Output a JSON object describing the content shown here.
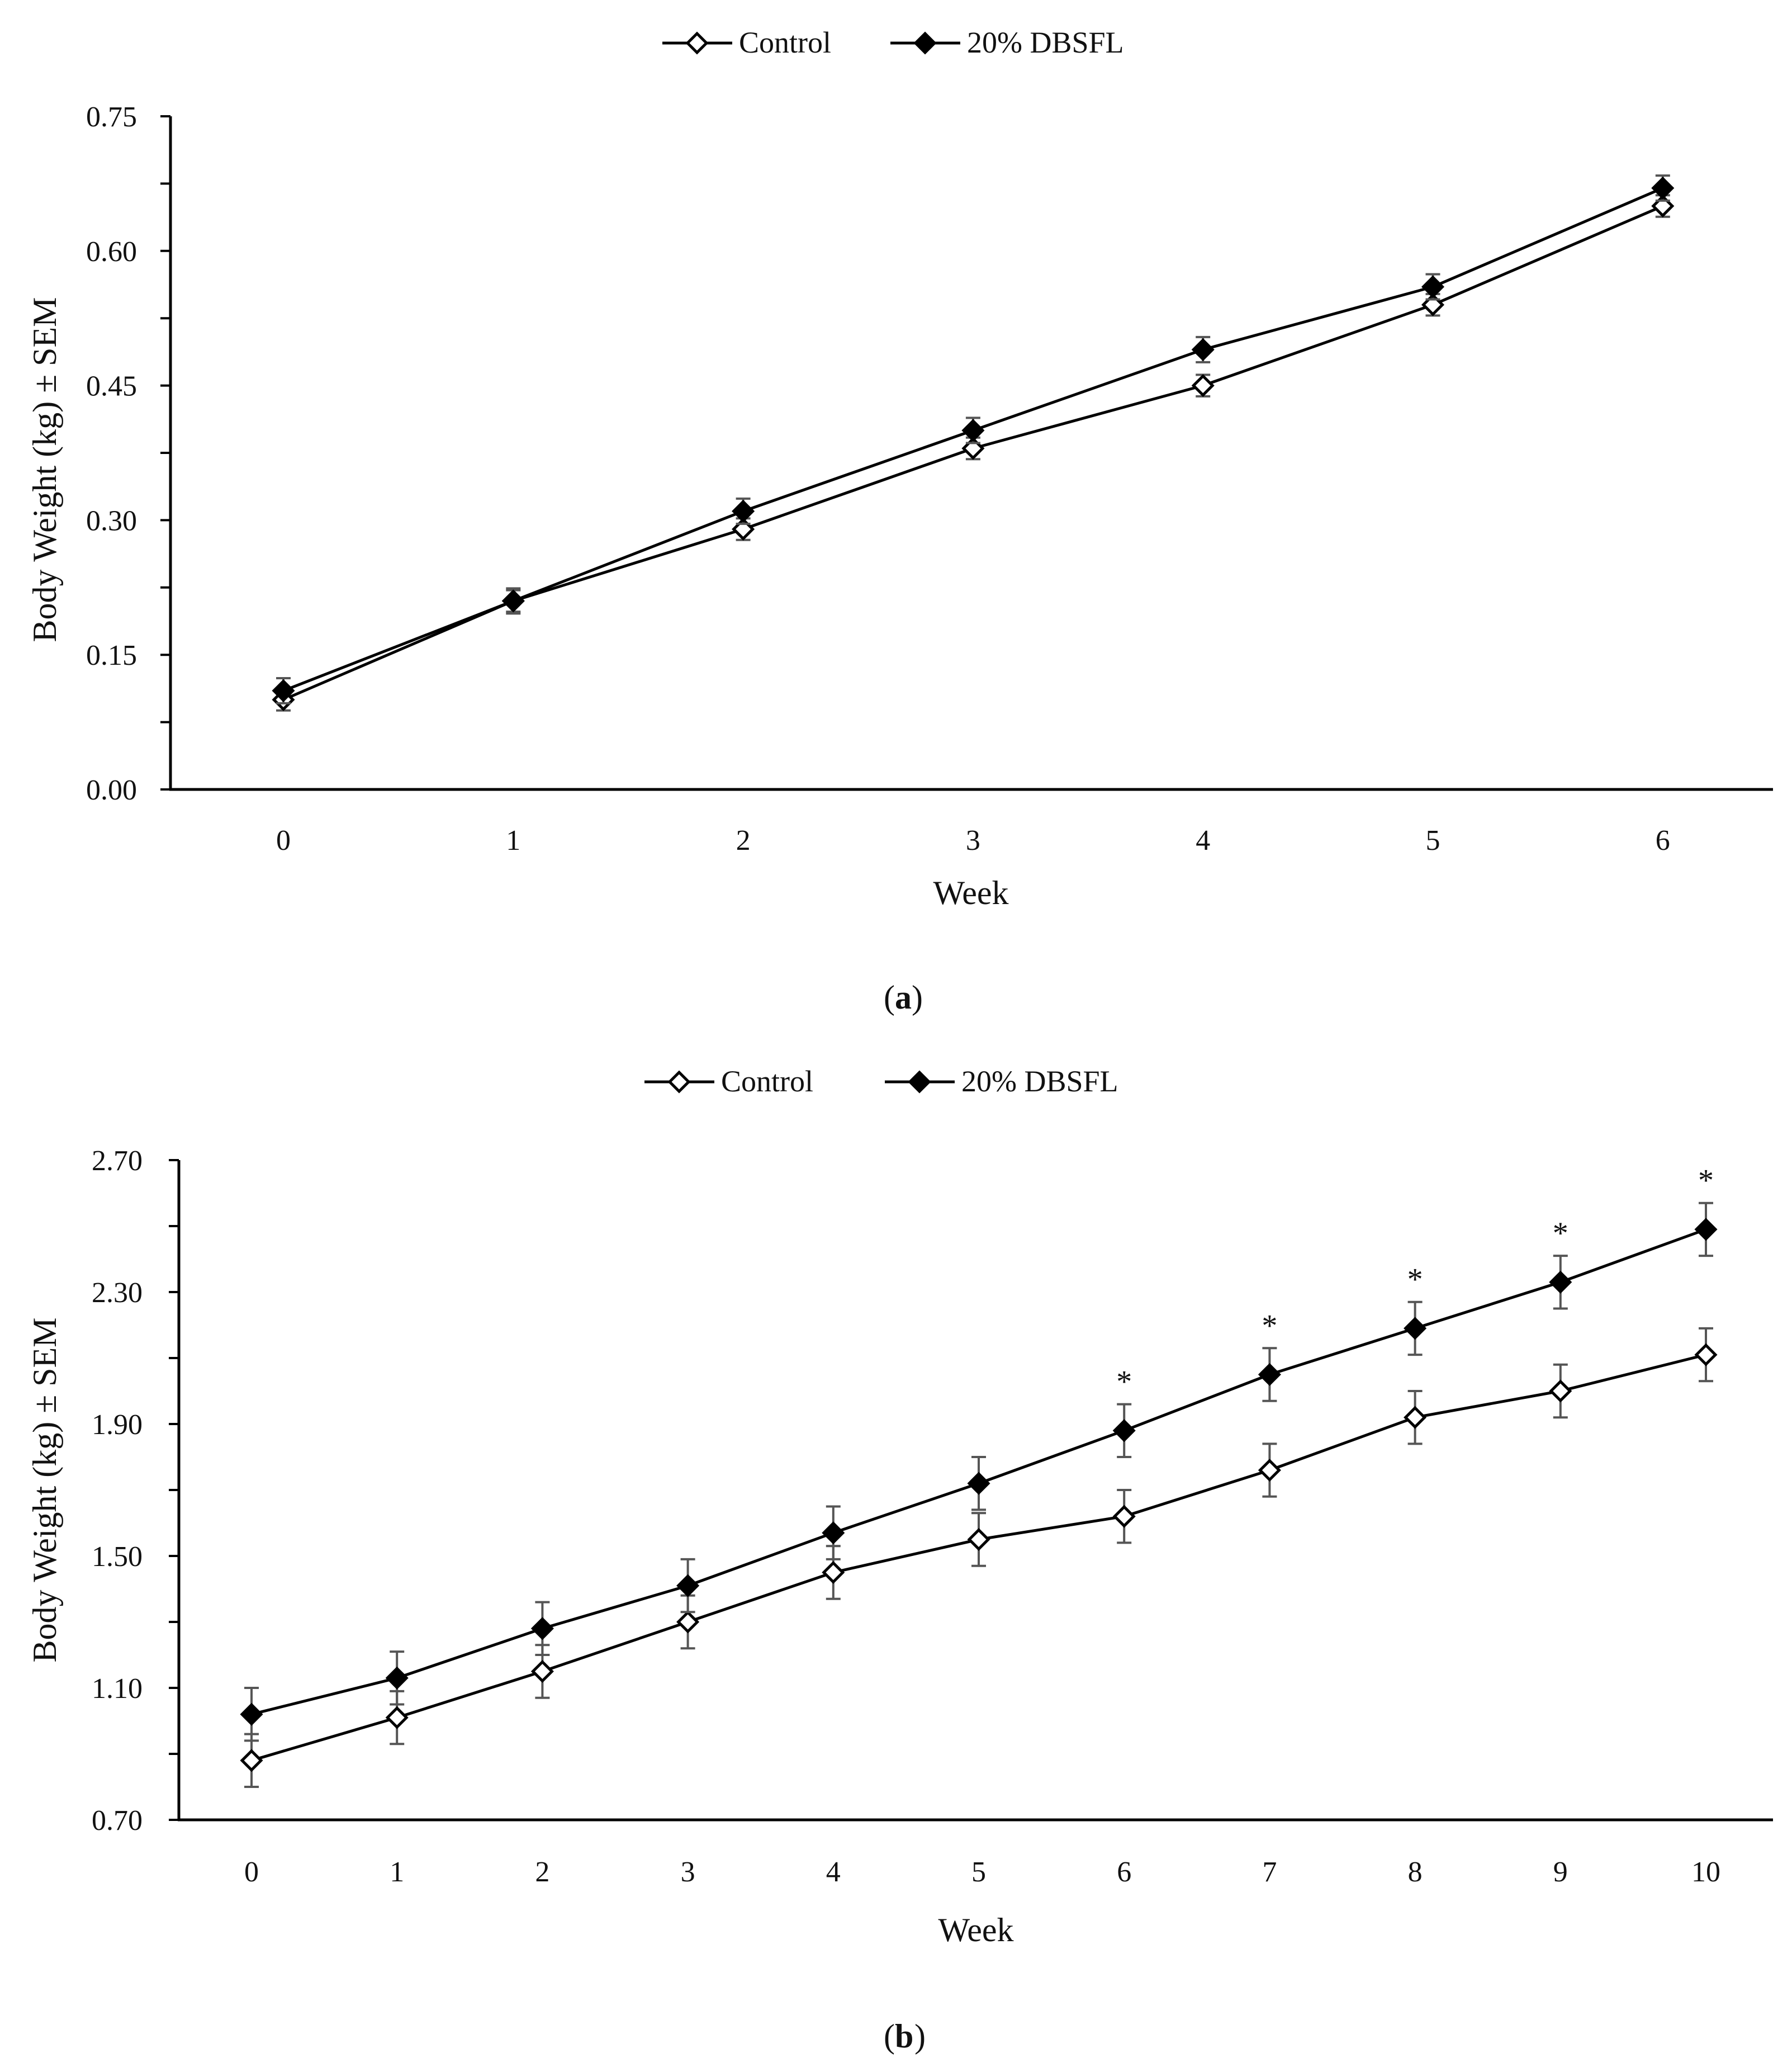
{
  "colors": {
    "line": "#000000",
    "control_fill": "#ffffff",
    "dbsfl_fill": "#000000",
    "error_bar": "#555555"
  },
  "chart_data": [
    {
      "type": "line",
      "panel_label": "a",
      "legend": [
        "Control",
        "20% DBSFL"
      ],
      "xlabel": "Week",
      "ylabel": "Body Weight (kg) ± SEM",
      "x": [
        0,
        1,
        2,
        3,
        4,
        5,
        6
      ],
      "xticks": [
        "0",
        "1",
        "2",
        "3",
        "4",
        "5",
        "6"
      ],
      "yticks": [
        "0.00",
        "0.15",
        "0.30",
        "0.45",
        "0.60",
        "0.75"
      ],
      "ylim": [
        0,
        0.75
      ],
      "yminor_step": 0.075,
      "series": [
        {
          "name": "Control",
          "marker": "open-diamond",
          "values": [
            0.1,
            0.21,
            0.29,
            0.38,
            0.45,
            0.54,
            0.65
          ],
          "sem": [
            0.012,
            0.012,
            0.012,
            0.012,
            0.012,
            0.012,
            0.012
          ]
        },
        {
          "name": "20% DBSFL",
          "marker": "filled-diamond",
          "values": [
            0.11,
            0.21,
            0.31,
            0.4,
            0.49,
            0.56,
            0.67
          ],
          "sem": [
            0.014,
            0.014,
            0.014,
            0.014,
            0.014,
            0.014,
            0.014
          ]
        }
      ],
      "annotations": []
    },
    {
      "type": "line",
      "panel_label": "b",
      "legend": [
        "Control",
        "20% DBSFL"
      ],
      "xlabel": "Week",
      "ylabel": "Body Weight (kg) ± SEM",
      "x": [
        0,
        1,
        2,
        3,
        4,
        5,
        6,
        7,
        8,
        9,
        10
      ],
      "xticks": [
        "0",
        "1",
        "2",
        "3",
        "4",
        "5",
        "6",
        "7",
        "8",
        "9",
        "10"
      ],
      "yticks": [
        "0.70",
        "1.10",
        "1.50",
        "1.90",
        "2.30",
        "2.70"
      ],
      "ylim": [
        0.7,
        2.7
      ],
      "yminor_step": 0.2,
      "series": [
        {
          "name": "Control",
          "marker": "open-diamond",
          "values": [
            0.88,
            1.01,
            1.15,
            1.3,
            1.45,
            1.55,
            1.62,
            1.76,
            1.92,
            2.0,
            2.11
          ],
          "sem": [
            0.08,
            0.08,
            0.08,
            0.08,
            0.08,
            0.08,
            0.08,
            0.08,
            0.08,
            0.08,
            0.08
          ]
        },
        {
          "name": "20% DBSFL",
          "marker": "filled-diamond",
          "values": [
            1.02,
            1.13,
            1.28,
            1.41,
            1.57,
            1.72,
            1.88,
            2.05,
            2.19,
            2.33,
            2.49
          ],
          "sem": [
            0.08,
            0.08,
            0.08,
            0.08,
            0.08,
            0.08,
            0.08,
            0.08,
            0.08,
            0.08,
            0.08
          ]
        }
      ],
      "annotations": [
        {
          "x": 6,
          "text": "*"
        },
        {
          "x": 7,
          "text": "*"
        },
        {
          "x": 8,
          "text": "*"
        },
        {
          "x": 9,
          "text": "*"
        },
        {
          "x": 10,
          "text": "*"
        }
      ]
    }
  ]
}
